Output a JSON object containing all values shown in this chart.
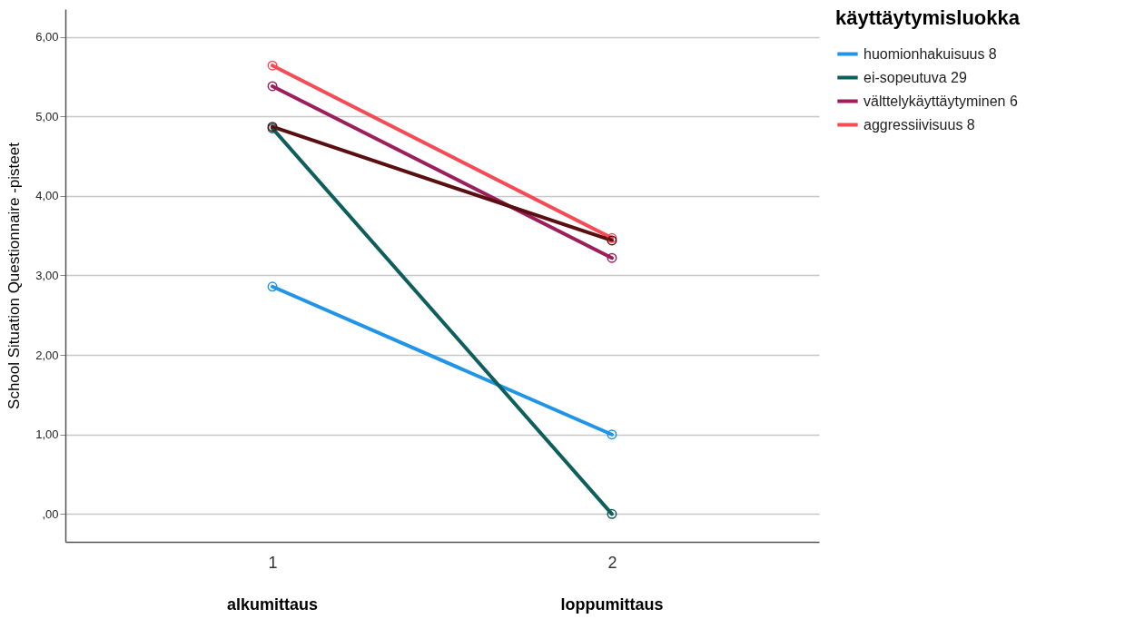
{
  "chart_data": {
    "type": "line",
    "ylabel": "School Situation Questionnaire -pisteet",
    "legend_title": "käyttäytymisluokka",
    "legend": "top right",
    "grid": "y",
    "marker": "circle",
    "line_style": "solid",
    "x": [
      1,
      2
    ],
    "xlim": [
      0.39,
      2.61
    ],
    "xticks": [
      1,
      2
    ],
    "ylim": [
      -0.35,
      6.35
    ],
    "yticks": [
      {
        "value": 0,
        "label": ",00"
      },
      {
        "value": 1,
        "label": "1,00"
      },
      {
        "value": 2,
        "label": "2,00"
      },
      {
        "value": 3,
        "label": "3,00"
      },
      {
        "value": 4,
        "label": "4,00"
      },
      {
        "value": 5,
        "label": "5,00"
      },
      {
        "value": 6,
        "label": "6,00"
      }
    ],
    "annotations": [
      "alkumittaus",
      "loppumittaus"
    ],
    "series": [
      {
        "name": "huomionhakuisuus 8",
        "color": "#1f94e8",
        "values": [
          2.86,
          1.0
        ]
      },
      {
        "name": "ei-sopeutuva 29",
        "color": "#0e5f5b",
        "values": [
          4.85,
          0
        ]
      },
      {
        "name": "välttelykäyttäytyminen 6",
        "color": "#9c1f5c",
        "values": [
          5.38,
          3.22
        ]
      },
      {
        "name": "aggressiivisuus 8",
        "color": "#f64a55",
        "values": [
          5.64,
          3.47
        ]
      },
      {
        "color": "#5a0e10",
        "values": [
          4.87,
          3.44
        ]
      }
    ]
  }
}
